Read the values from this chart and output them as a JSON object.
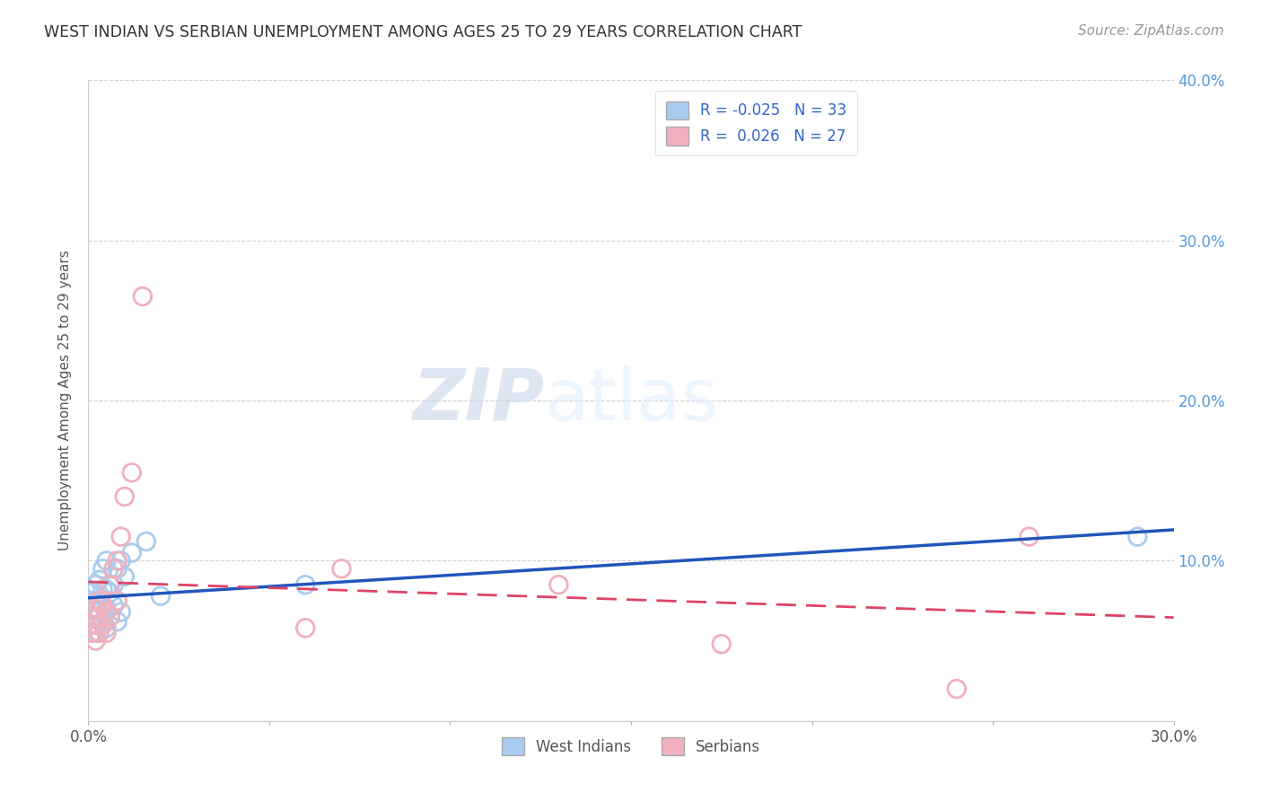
{
  "title": "WEST INDIAN VS SERBIAN UNEMPLOYMENT AMONG AGES 25 TO 29 YEARS CORRELATION CHART",
  "source": "Source: ZipAtlas.com",
  "ylabel": "Unemployment Among Ages 25 to 29 years",
  "xlim": [
    0.0,
    0.3
  ],
  "ylim": [
    0.0,
    0.4
  ],
  "legend_r_west_indian": "R = -0.025",
  "legend_n_west_indian": "N = 33",
  "legend_r_serbian": "R =  0.026",
  "legend_n_serbian": "N = 27",
  "color_west_indian": "#A8CCEE",
  "color_serbian": "#F0B0BE",
  "line_color_west_indian": "#2255BB",
  "line_color_serbian": "#DD4466",
  "watermark_zip": "ZIP",
  "watermark_atlas": "atlas",
  "west_indian_x": [
    0.001,
    0.001,
    0.001,
    0.002,
    0.002,
    0.002,
    0.002,
    0.003,
    0.003,
    0.003,
    0.003,
    0.004,
    0.004,
    0.004,
    0.004,
    0.005,
    0.005,
    0.005,
    0.005,
    0.006,
    0.006,
    0.007,
    0.007,
    0.008,
    0.008,
    0.009,
    0.009,
    0.01,
    0.012,
    0.016,
    0.02,
    0.06,
    0.29
  ],
  "west_indian_y": [
    0.06,
    0.07,
    0.08,
    0.055,
    0.065,
    0.075,
    0.085,
    0.055,
    0.068,
    0.075,
    0.088,
    0.062,
    0.072,
    0.082,
    0.095,
    0.058,
    0.07,
    0.082,
    0.1,
    0.065,
    0.08,
    0.072,
    0.085,
    0.062,
    0.095,
    0.068,
    0.1,
    0.09,
    0.105,
    0.112,
    0.078,
    0.085,
    0.115
  ],
  "serbian_x": [
    0.001,
    0.001,
    0.002,
    0.002,
    0.002,
    0.003,
    0.003,
    0.003,
    0.004,
    0.004,
    0.005,
    0.005,
    0.006,
    0.006,
    0.007,
    0.008,
    0.008,
    0.009,
    0.01,
    0.012,
    0.015,
    0.06,
    0.07,
    0.13,
    0.175,
    0.24,
    0.26
  ],
  "serbian_y": [
    0.055,
    0.065,
    0.05,
    0.06,
    0.07,
    0.055,
    0.065,
    0.075,
    0.06,
    0.072,
    0.055,
    0.068,
    0.065,
    0.085,
    0.095,
    0.075,
    0.1,
    0.115,
    0.14,
    0.155,
    0.265,
    0.058,
    0.095,
    0.085,
    0.048,
    0.02,
    0.115
  ],
  "wi_slope": -0.025,
  "wi_intercept": 0.093,
  "se_slope": 0.026,
  "se_intercept": 0.092
}
